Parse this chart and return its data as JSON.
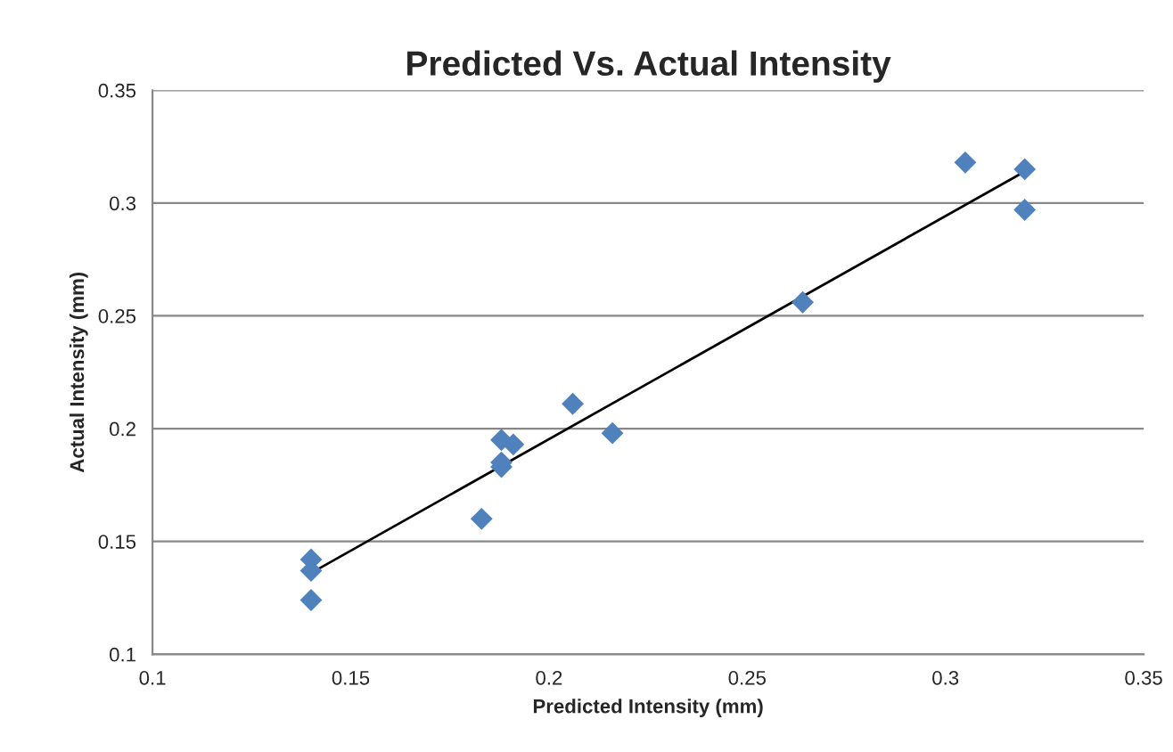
{
  "chart_data": {
    "type": "scatter",
    "title": "Predicted Vs. Actual Intensity",
    "xlabel": "Predicted Intensity (mm)",
    "ylabel": "Actual Intensity (mm)",
    "series": [
      {
        "color": "#4f81bd",
        "marker": "diamond",
        "x": [
          0.14,
          0.14,
          0.14,
          0.183,
          0.188,
          0.191,
          0.188,
          0.188,
          0.206,
          0.216,
          0.264,
          0.305,
          0.32,
          0.32
        ],
        "values": [
          0.142,
          0.137,
          0.124,
          0.16,
          0.195,
          0.193,
          0.185,
          0.183,
          0.211,
          0.198,
          0.256,
          0.318,
          0.315,
          0.297
        ]
      },
      {
        "type": "line",
        "color": "#000000",
        "x": [
          0.14,
          0.32
        ],
        "values": [
          0.136,
          0.314
        ]
      }
    ],
    "xlim": [
      0.1,
      0.35
    ],
    "xticks": [
      0.1,
      0.15,
      0.2,
      0.25,
      0.3,
      0.35
    ],
    "ylim": [
      0.1,
      0.35
    ],
    "yticks": [
      0.1,
      0.15,
      0.2,
      0.25,
      0.3,
      0.35
    ],
    "grid": "y"
  }
}
